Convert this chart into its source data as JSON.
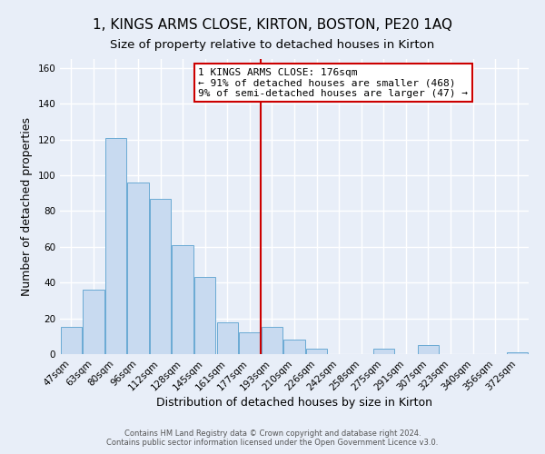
{
  "title": "1, KINGS ARMS CLOSE, KIRTON, BOSTON, PE20 1AQ",
  "subtitle": "Size of property relative to detached houses in Kirton",
  "xlabel": "Distribution of detached houses by size in Kirton",
  "ylabel": "Number of detached properties",
  "bar_labels": [
    "47sqm",
    "63sqm",
    "80sqm",
    "96sqm",
    "112sqm",
    "128sqm",
    "145sqm",
    "161sqm",
    "177sqm",
    "193sqm",
    "210sqm",
    "226sqm",
    "242sqm",
    "258sqm",
    "275sqm",
    "291sqm",
    "307sqm",
    "323sqm",
    "340sqm",
    "356sqm",
    "372sqm"
  ],
  "bar_values": [
    15,
    36,
    121,
    96,
    87,
    61,
    43,
    18,
    12,
    15,
    8,
    3,
    0,
    0,
    3,
    0,
    5,
    0,
    0,
    0,
    1
  ],
  "bar_color": "#c8daf0",
  "bar_edge_color": "#6aaad4",
  "highlight_index": 8,
  "highlight_color": "#cc0000",
  "ylim": [
    0,
    165
  ],
  "yticks": [
    0,
    20,
    40,
    60,
    80,
    100,
    120,
    140,
    160
  ],
  "annotation_title": "1 KINGS ARMS CLOSE: 176sqm",
  "annotation_line1": "← 91% of detached houses are smaller (468)",
  "annotation_line2": "9% of semi-detached houses are larger (47) →",
  "footer_line1": "Contains HM Land Registry data © Crown copyright and database right 2024.",
  "footer_line2": "Contains public sector information licensed under the Open Government Licence v3.0.",
  "background_color": "#e8eef8",
  "grid_color": "#ffffff",
  "title_fontsize": 11,
  "subtitle_fontsize": 9.5,
  "tick_fontsize": 7.5,
  "label_fontsize": 9,
  "footer_fontsize": 6
}
